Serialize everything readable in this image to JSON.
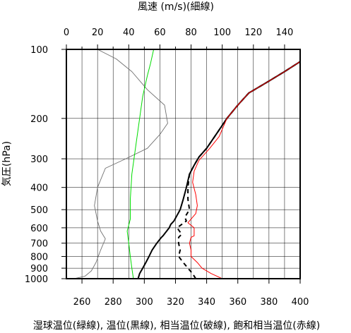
{
  "chart_data": {
    "type": "line",
    "title": "",
    "top_axis": {
      "label": "風速 (m/s)(細線)",
      "range": [
        0,
        150
      ],
      "ticks": [
        0,
        20,
        40,
        60,
        80,
        100,
        120,
        140
      ],
      "minor_step": 10
    },
    "bottom_axis": {
      "label": "湿球温位(緑線), 温位(黒線), 相当温位(破線), 飽和相当温位(赤線)",
      "range": [
        250,
        400
      ],
      "ticks": [
        260,
        280,
        300,
        320,
        340,
        360,
        380,
        400
      ]
    },
    "y_axis": {
      "label": "気圧(hPa)",
      "scale": "log",
      "range": [
        1000,
        100
      ],
      "ticks": [
        100,
        200,
        300,
        400,
        500,
        600,
        700,
        800,
        900,
        1000
      ]
    },
    "grid": true,
    "series": [
      {
        "key": "wind_speed",
        "axis": "top",
        "color": "#707070",
        "width": 0.9,
        "dash": "",
        "points": [
          [
            5,
            1000
          ],
          [
            12,
            975
          ],
          [
            16,
            925
          ],
          [
            19,
            850
          ],
          [
            22,
            750
          ],
          [
            25,
            670
          ],
          [
            22,
            620
          ],
          [
            20,
            560
          ],
          [
            18,
            480
          ],
          [
            20,
            400
          ],
          [
            25,
            330
          ],
          [
            38,
            300
          ],
          [
            52,
            270
          ],
          [
            60,
            235
          ],
          [
            65,
            210
          ],
          [
            63,
            175
          ],
          [
            52,
            150
          ],
          [
            42,
            125
          ],
          [
            32,
            110
          ],
          [
            20,
            100
          ]
        ]
      },
      {
        "key": "wet_bulb_potential_temperature",
        "axis": "bottom",
        "color": "#00dd00",
        "width": 1,
        "dash": "",
        "points": [
          [
            293,
            1000
          ],
          [
            292,
            900
          ],
          [
            291,
            800
          ],
          [
            290,
            700
          ],
          [
            289,
            620
          ],
          [
            291,
            550
          ],
          [
            291,
            450
          ],
          [
            292,
            350
          ],
          [
            295,
            250
          ],
          [
            297,
            200
          ],
          [
            299,
            160
          ],
          [
            302,
            130
          ],
          [
            304,
            115
          ],
          [
            306,
            100
          ]
        ]
      },
      {
        "key": "potential_temperature",
        "axis": "bottom",
        "color": "#000000",
        "width": 2,
        "dash": "",
        "points": [
          [
            296,
            1000
          ],
          [
            297,
            950
          ],
          [
            299,
            900
          ],
          [
            301,
            850
          ],
          [
            303,
            800
          ],
          [
            305,
            750
          ],
          [
            308,
            700
          ],
          [
            311,
            660
          ],
          [
            312,
            650
          ],
          [
            316,
            600
          ],
          [
            317,
            580
          ],
          [
            319,
            560
          ],
          [
            323,
            500
          ],
          [
            325,
            450
          ],
          [
            327,
            400
          ],
          [
            329,
            350
          ],
          [
            332,
            320
          ],
          [
            335,
            295
          ],
          [
            340,
            270
          ],
          [
            347,
            230
          ],
          [
            353,
            200
          ],
          [
            360,
            175
          ],
          [
            367,
            155
          ],
          [
            378,
            140
          ],
          [
            390,
            125
          ],
          [
            400,
            113
          ],
          [
            407,
            105
          ]
        ]
      },
      {
        "key": "equivalent_potential_temperature",
        "axis": "bottom",
        "color": "#000000",
        "width": 2,
        "dash": "6,5",
        "points": [
          [
            333,
            1000
          ],
          [
            331,
            950
          ],
          [
            328,
            900
          ],
          [
            325,
            850
          ],
          [
            322,
            800
          ],
          [
            323,
            750
          ],
          [
            322,
            700
          ],
          [
            322,
            660
          ],
          [
            324,
            640
          ],
          [
            321,
            600
          ],
          [
            324,
            580
          ],
          [
            327,
            560
          ],
          [
            326,
            540
          ],
          [
            329,
            500
          ],
          [
            328,
            450
          ],
          [
            328,
            400
          ],
          [
            329,
            350
          ],
          [
            332,
            320
          ],
          [
            335,
            295
          ],
          [
            340,
            270
          ],
          [
            347,
            230
          ],
          [
            353,
            200
          ],
          [
            360,
            175
          ],
          [
            367,
            155
          ],
          [
            378,
            140
          ],
          [
            390,
            125
          ],
          [
            400,
            113
          ],
          [
            407,
            105
          ]
        ]
      },
      {
        "key": "saturated_equivalent_potential_temperature",
        "axis": "bottom",
        "color": "#ff0000",
        "width": 1,
        "dash": "",
        "points": [
          [
            350,
            1000
          ],
          [
            343,
            950
          ],
          [
            337,
            900
          ],
          [
            334,
            850
          ],
          [
            330,
            800
          ],
          [
            330,
            750
          ],
          [
            329,
            700
          ],
          [
            330,
            660
          ],
          [
            332,
            650
          ],
          [
            332,
            600
          ],
          [
            328,
            570
          ],
          [
            330,
            550
          ],
          [
            333,
            520
          ],
          [
            334,
            480
          ],
          [
            333,
            430
          ],
          [
            331,
            380
          ],
          [
            332,
            340
          ],
          [
            335,
            305
          ],
          [
            342,
            270
          ],
          [
            348,
            240
          ],
          [
            353,
            200
          ],
          [
            360,
            175
          ],
          [
            367,
            155
          ],
          [
            378,
            140
          ],
          [
            390,
            125
          ],
          [
            400,
            113
          ],
          [
            407,
            105
          ]
        ]
      }
    ]
  }
}
